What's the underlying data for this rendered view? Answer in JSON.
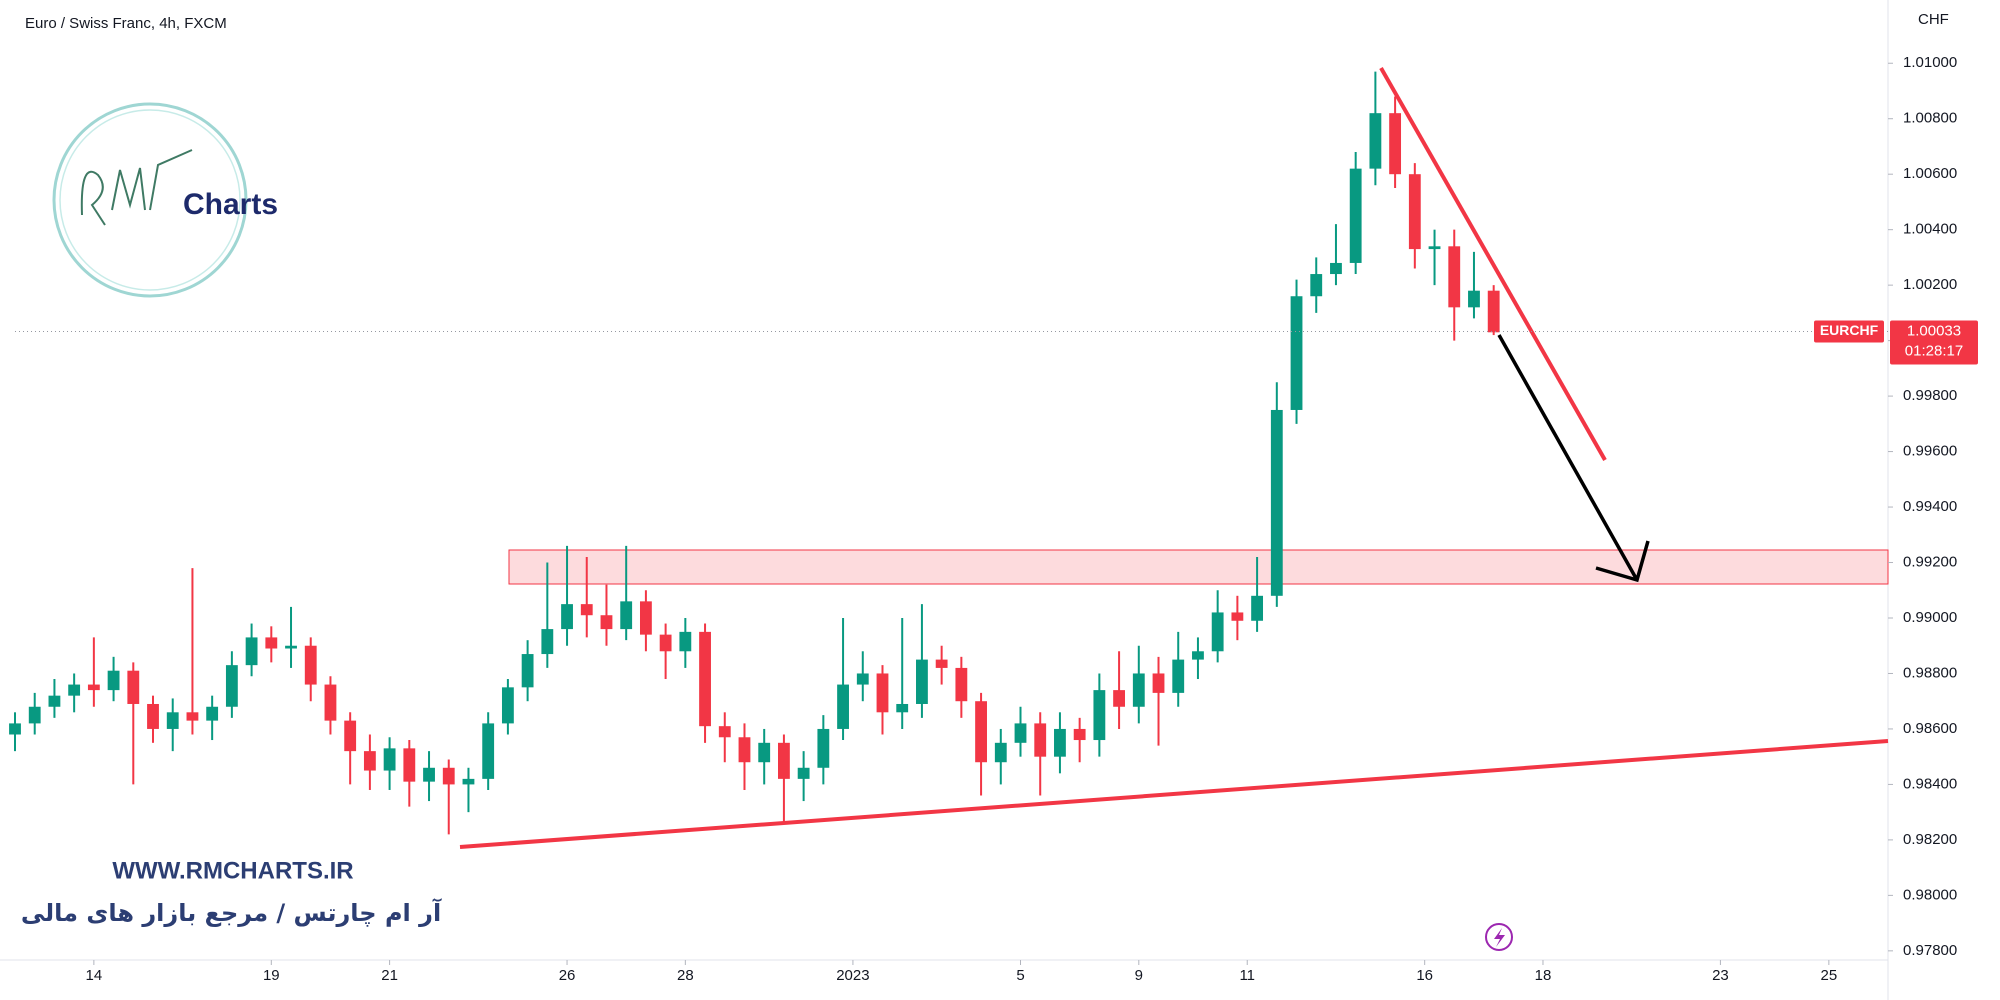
{
  "chart_data": {
    "type": "candlestick",
    "title": "Euro / Swiss Franc, 4h, FXCM",
    "ylabel": "CHF",
    "symbol": "EURCHF",
    "last_price": 1.00033,
    "countdown": "01:28:17",
    "logo_text": "Charts",
    "watermark": [
      "WWW.RMCHARTS.IR",
      "آر ام چارتس / مرجع بازار های مالی"
    ],
    "up_color": "#089981",
    "down_color": "#f23645",
    "grid": false,
    "xlim": [
      0,
      190
    ],
    "xticks": [
      {
        "value": 8,
        "label": "14"
      },
      {
        "value": 26,
        "label": "19"
      },
      {
        "value": 38,
        "label": "21"
      },
      {
        "value": 56,
        "label": "26"
      },
      {
        "value": 68,
        "label": "28"
      },
      {
        "value": 85,
        "label": "2023"
      },
      {
        "value": 102,
        "label": "5"
      },
      {
        "value": 114,
        "label": "9"
      },
      {
        "value": 125,
        "label": "11"
      },
      {
        "value": 143,
        "label": "16"
      },
      {
        "value": 155,
        "label": "18"
      },
      {
        "value": 173,
        "label": "23"
      },
      {
        "value": 184,
        "label": "25"
      }
    ],
    "ylim": [
      0.97767,
      1.01228
    ],
    "yticks": [
      {
        "value": 0.978,
        "label": "0.97800"
      },
      {
        "value": 0.98,
        "label": "0.98000"
      },
      {
        "value": 0.982,
        "label": "0.98200"
      },
      {
        "value": 0.984,
        "label": "0.98400"
      },
      {
        "value": 0.986,
        "label": "0.98600"
      },
      {
        "value": 0.988,
        "label": "0.98800"
      },
      {
        "value": 0.99,
        "label": "0.99000"
      },
      {
        "value": 0.992,
        "label": "0.99200"
      },
      {
        "value": 0.994,
        "label": "0.99400"
      },
      {
        "value": 0.996,
        "label": "0.99600"
      },
      {
        "value": 0.998,
        "label": "0.99800"
      },
      {
        "value": 1.0,
        "label": "1.00000"
      },
      {
        "value": 1.002,
        "label": "1.00200"
      },
      {
        "value": 1.004,
        "label": "1.00400"
      },
      {
        "value": 1.006,
        "label": "1.00600"
      },
      {
        "value": 1.008,
        "label": "1.00800"
      },
      {
        "value": 1.01,
        "label": "1.01000"
      }
    ],
    "x": [
      0,
      2,
      4,
      6,
      8,
      10,
      12,
      14,
      16,
      18,
      20,
      22,
      24,
      26,
      28,
      30,
      32,
      34,
      36,
      38,
      40,
      42,
      44,
      46,
      48,
      50,
      52,
      54,
      56,
      58,
      60,
      62,
      64,
      66,
      68,
      70,
      72,
      74,
      76,
      78,
      80,
      82,
      84,
      86,
      88,
      90,
      92,
      94,
      96,
      98,
      100,
      102,
      104,
      106,
      108,
      110,
      112,
      114,
      116,
      118,
      120,
      122,
      124,
      126,
      128,
      130,
      132,
      134,
      136,
      138,
      140,
      142,
      144,
      146,
      148,
      150
    ],
    "open": [
      0.9858,
      0.9862,
      0.9868,
      0.9872,
      0.9876,
      0.9874,
      0.9881,
      0.9869,
      0.986,
      0.9866,
      0.9863,
      0.9868,
      0.9883,
      0.9893,
      0.9889,
      0.989,
      0.9876,
      0.9863,
      0.9852,
      0.9845,
      0.9853,
      0.9841,
      0.9846,
      0.984,
      0.9842,
      0.9862,
      0.9875,
      0.9887,
      0.9896,
      0.9905,
      0.9901,
      0.9896,
      0.9906,
      0.9894,
      0.9888,
      0.9895,
      0.9861,
      0.9857,
      0.9848,
      0.9855,
      0.9842,
      0.9846,
      0.986,
      0.9876,
      0.988,
      0.9866,
      0.9869,
      0.9885,
      0.9882,
      0.987,
      0.9848,
      0.9855,
      0.9862,
      0.985,
      0.986,
      0.9856,
      0.9874,
      0.9868,
      0.988,
      0.9873,
      0.9885,
      0.9888,
      0.9902,
      0.9899,
      0.9908,
      0.9975,
      1.0016,
      1.0024,
      1.0028,
      1.0062,
      1.0082,
      1.006,
      1.0033,
      1.0034,
      1.0012,
      1.0018
    ],
    "high": [
      0.9866,
      0.9873,
      0.9878,
      0.988,
      0.9893,
      0.9886,
      0.9884,
      0.9872,
      0.9871,
      0.9918,
      0.9872,
      0.9888,
      0.9898,
      0.9897,
      0.9904,
      0.9893,
      0.9879,
      0.9866,
      0.9858,
      0.9857,
      0.9856,
      0.9852,
      0.9849,
      0.9846,
      0.9866,
      0.9878,
      0.9892,
      0.992,
      0.9926,
      0.9922,
      0.9912,
      0.9926,
      0.991,
      0.9898,
      0.99,
      0.9898,
      0.9866,
      0.9862,
      0.986,
      0.9858,
      0.9852,
      0.9865,
      0.99,
      0.9888,
      0.9883,
      0.99,
      0.9905,
      0.989,
      0.9886,
      0.9873,
      0.986,
      0.9868,
      0.9866,
      0.9866,
      0.9864,
      0.988,
      0.9888,
      0.989,
      0.9886,
      0.9895,
      0.9893,
      0.991,
      0.9908,
      0.9922,
      0.9985,
      1.0022,
      1.003,
      1.0042,
      1.0068,
      1.0097,
      1.0088,
      1.0064,
      1.004,
      1.004,
      1.0032,
      1.002
    ],
    "low": [
      0.9852,
      0.9858,
      0.9864,
      0.9866,
      0.9868,
      0.987,
      0.984,
      0.9855,
      0.9852,
      0.9858,
      0.9856,
      0.9864,
      0.9879,
      0.9884,
      0.9882,
      0.987,
      0.9858,
      0.984,
      0.9838,
      0.9838,
      0.9832,
      0.9834,
      0.9822,
      0.983,
      0.9838,
      0.9858,
      0.987,
      0.9882,
      0.989,
      0.9893,
      0.989,
      0.9892,
      0.9888,
      0.9878,
      0.9882,
      0.9855,
      0.9848,
      0.9838,
      0.984,
      0.9826,
      0.9834,
      0.984,
      0.9856,
      0.987,
      0.9858,
      0.986,
      0.9864,
      0.9876,
      0.9864,
      0.9836,
      0.984,
      0.985,
      0.9836,
      0.9844,
      0.9848,
      0.985,
      0.986,
      0.9862,
      0.9854,
      0.9868,
      0.9878,
      0.9884,
      0.9892,
      0.9895,
      0.9904,
      0.997,
      1.001,
      1.002,
      1.0024,
      1.0056,
      1.0055,
      1.0026,
      1.002,
      1.0,
      1.0008,
      1.0002
    ],
    "close": [
      0.9862,
      0.9868,
      0.9872,
      0.9876,
      0.9874,
      0.9881,
      0.9869,
      0.986,
      0.9866,
      0.9863,
      0.9868,
      0.9883,
      0.9893,
      0.9889,
      0.989,
      0.9876,
      0.9863,
      0.9852,
      0.9845,
      0.9853,
      0.9841,
      0.9846,
      0.984,
      0.9842,
      0.9862,
      0.9875,
      0.9887,
      0.9896,
      0.9905,
      0.9901,
      0.9896,
      0.9906,
      0.9894,
      0.9888,
      0.9895,
      0.9861,
      0.9857,
      0.9848,
      0.9855,
      0.9842,
      0.9846,
      0.986,
      0.9876,
      0.988,
      0.9866,
      0.9869,
      0.9885,
      0.9882,
      0.987,
      0.9848,
      0.9855,
      0.9862,
      0.985,
      0.986,
      0.9856,
      0.9874,
      0.9868,
      0.988,
      0.9873,
      0.9885,
      0.9888,
      0.9902,
      0.9899,
      0.9908,
      0.9975,
      1.0016,
      1.0024,
      1.0028,
      1.0062,
      1.0082,
      1.006,
      1.0033,
      1.0034,
      1.0012,
      1.0018,
      1.0003
    ]
  }
}
